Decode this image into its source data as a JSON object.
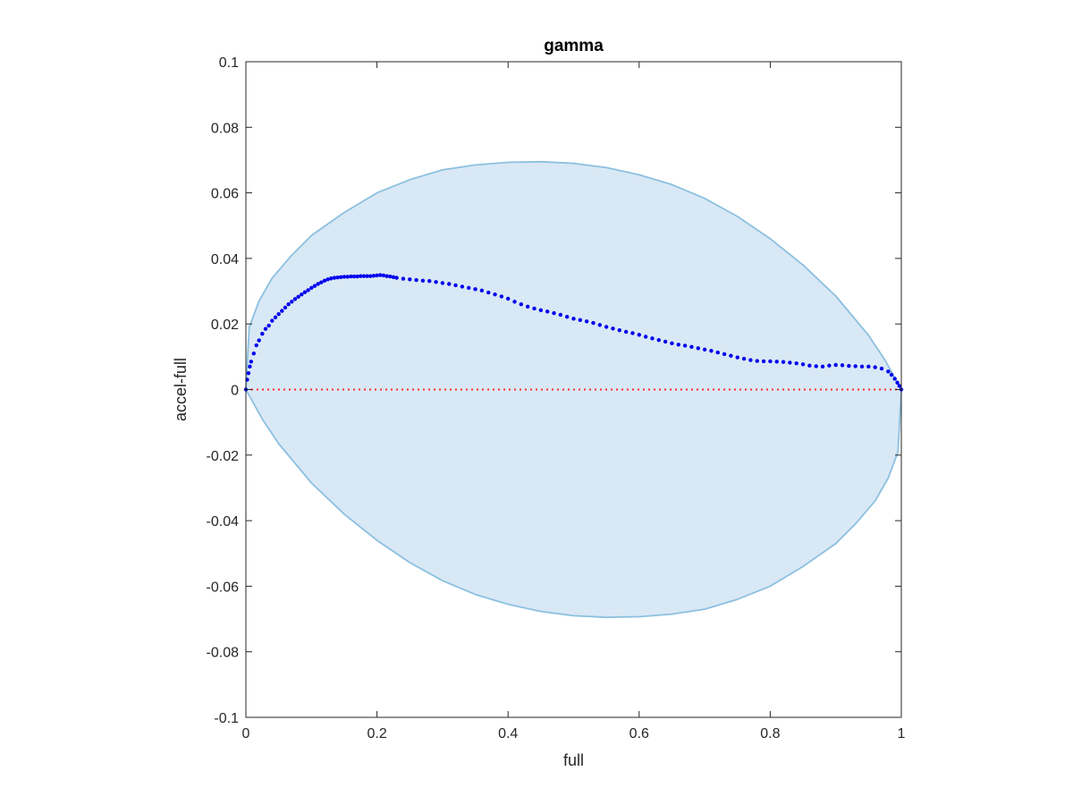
{
  "chart_data": {
    "type": "scatter",
    "title": "gamma",
    "xlabel": "full",
    "ylabel": "accel-full",
    "xlim": [
      0,
      1
    ],
    "ylim": [
      -0.1,
      0.1
    ],
    "xticks": [
      0,
      0.2,
      0.4,
      0.6,
      0.8,
      1
    ],
    "xtick_labels": [
      "0",
      "0.2",
      "0.4",
      "0.6",
      "0.8",
      "1"
    ],
    "yticks": [
      -0.1,
      -0.08,
      -0.06,
      -0.04,
      -0.02,
      0,
      0.02,
      0.04,
      0.06,
      0.08,
      0.1
    ],
    "ytick_labels": [
      "-0.1",
      "-0.08",
      "-0.06",
      "-0.04",
      "-0.02",
      "0",
      "0.02",
      "0.04",
      "0.06",
      "0.08",
      "0.1"
    ],
    "grid": false,
    "colors": {
      "points": "#0000ee",
      "region_fill": "#d9e8f5",
      "region_edge": "#8cc0e0",
      "reference_line": "#ff2a2a",
      "axes": "#262626"
    },
    "reference_line": {
      "y": 0,
      "style": "dotted"
    },
    "region": {
      "shape": "ellipse",
      "upper": [
        [
          0.0,
          0.0
        ],
        [
          0.005,
          0.019
        ],
        [
          0.02,
          0.027
        ],
        [
          0.04,
          0.034
        ],
        [
          0.07,
          0.041
        ],
        [
          0.1,
          0.047
        ],
        [
          0.15,
          0.054
        ],
        [
          0.2,
          0.06
        ],
        [
          0.25,
          0.064
        ],
        [
          0.3,
          0.067
        ],
        [
          0.35,
          0.0685
        ],
        [
          0.4,
          0.0693
        ],
        [
          0.45,
          0.0695
        ],
        [
          0.5,
          0.069
        ],
        [
          0.55,
          0.0677
        ],
        [
          0.6,
          0.0655
        ],
        [
          0.65,
          0.0625
        ],
        [
          0.7,
          0.0583
        ],
        [
          0.75,
          0.0528
        ],
        [
          0.8,
          0.046
        ],
        [
          0.85,
          0.038
        ],
        [
          0.9,
          0.0285
        ],
        [
          0.95,
          0.0165
        ],
        [
          0.975,
          0.009
        ],
        [
          1.0,
          0.0
        ]
      ],
      "lower": [
        [
          0.0,
          0.0
        ],
        [
          0.025,
          -0.009
        ],
        [
          0.05,
          -0.0165
        ],
        [
          0.1,
          -0.0285
        ],
        [
          0.15,
          -0.038
        ],
        [
          0.2,
          -0.046
        ],
        [
          0.25,
          -0.0528
        ],
        [
          0.3,
          -0.0583
        ],
        [
          0.35,
          -0.0625
        ],
        [
          0.4,
          -0.0655
        ],
        [
          0.45,
          -0.0677
        ],
        [
          0.5,
          -0.069
        ],
        [
          0.55,
          -0.0695
        ],
        [
          0.6,
          -0.0693
        ],
        [
          0.65,
          -0.0685
        ],
        [
          0.7,
          -0.067
        ],
        [
          0.75,
          -0.064
        ],
        [
          0.8,
          -0.06
        ],
        [
          0.85,
          -0.054
        ],
        [
          0.9,
          -0.047
        ],
        [
          0.93,
          -0.041
        ],
        [
          0.96,
          -0.034
        ],
        [
          0.98,
          -0.027
        ],
        [
          0.995,
          -0.019
        ],
        [
          1.0,
          0.0
        ]
      ]
    },
    "series": [
      {
        "points": [
          [
            0.0,
            0.0
          ],
          [
            0.002,
            0.003
          ],
          [
            0.004,
            0.005
          ],
          [
            0.006,
            0.007
          ],
          [
            0.008,
            0.0085
          ],
          [
            0.012,
            0.011
          ],
          [
            0.016,
            0.0135
          ],
          [
            0.02,
            0.015
          ],
          [
            0.025,
            0.017
          ],
          [
            0.03,
            0.0185
          ],
          [
            0.035,
            0.0195
          ],
          [
            0.04,
            0.021
          ],
          [
            0.045,
            0.022
          ],
          [
            0.05,
            0.023
          ],
          [
            0.055,
            0.024
          ],
          [
            0.06,
            0.025
          ],
          [
            0.065,
            0.026
          ],
          [
            0.07,
            0.0268
          ],
          [
            0.075,
            0.0276
          ],
          [
            0.08,
            0.0283
          ],
          [
            0.085,
            0.029
          ],
          [
            0.09,
            0.0297
          ],
          [
            0.095,
            0.0303
          ],
          [
            0.1,
            0.031
          ],
          [
            0.105,
            0.0316
          ],
          [
            0.11,
            0.0322
          ],
          [
            0.115,
            0.0327
          ],
          [
            0.12,
            0.0332
          ],
          [
            0.125,
            0.0336
          ],
          [
            0.13,
            0.0339
          ],
          [
            0.135,
            0.0341
          ],
          [
            0.14,
            0.0342
          ],
          [
            0.145,
            0.0343
          ],
          [
            0.15,
            0.0344
          ],
          [
            0.155,
            0.0344
          ],
          [
            0.16,
            0.0345
          ],
          [
            0.165,
            0.0345
          ],
          [
            0.17,
            0.0345
          ],
          [
            0.175,
            0.0346
          ],
          [
            0.18,
            0.0346
          ],
          [
            0.185,
            0.0346
          ],
          [
            0.19,
            0.0346
          ],
          [
            0.195,
            0.0347
          ],
          [
            0.2,
            0.0348
          ],
          [
            0.205,
            0.0349
          ],
          [
            0.21,
            0.0348
          ],
          [
            0.215,
            0.0346
          ],
          [
            0.22,
            0.0345
          ],
          [
            0.225,
            0.0343
          ],
          [
            0.23,
            0.0341
          ],
          [
            0.24,
            0.0338
          ],
          [
            0.25,
            0.0336
          ],
          [
            0.26,
            0.0334
          ],
          [
            0.27,
            0.0332
          ],
          [
            0.28,
            0.0331
          ],
          [
            0.29,
            0.0328
          ],
          [
            0.3,
            0.0325
          ],
          [
            0.31,
            0.0322
          ],
          [
            0.32,
            0.0318
          ],
          [
            0.33,
            0.0314
          ],
          [
            0.34,
            0.031
          ],
          [
            0.35,
            0.0306
          ],
          [
            0.36,
            0.0302
          ],
          [
            0.37,
            0.0296
          ],
          [
            0.38,
            0.029
          ],
          [
            0.39,
            0.0284
          ],
          [
            0.4,
            0.0277
          ],
          [
            0.41,
            0.0268
          ],
          [
            0.42,
            0.026
          ],
          [
            0.43,
            0.0253
          ],
          [
            0.44,
            0.0247
          ],
          [
            0.45,
            0.0242
          ],
          [
            0.46,
            0.0238
          ],
          [
            0.47,
            0.0233
          ],
          [
            0.48,
            0.0228
          ],
          [
            0.49,
            0.0222
          ],
          [
            0.5,
            0.0216
          ],
          [
            0.51,
            0.0212
          ],
          [
            0.52,
            0.0208
          ],
          [
            0.53,
            0.0203
          ],
          [
            0.54,
            0.0197
          ],
          [
            0.55,
            0.0191
          ],
          [
            0.56,
            0.0186
          ],
          [
            0.57,
            0.0181
          ],
          [
            0.58,
            0.0176
          ],
          [
            0.59,
            0.0172
          ],
          [
            0.6,
            0.0167
          ],
          [
            0.61,
            0.0161
          ],
          [
            0.62,
            0.0156
          ],
          [
            0.63,
            0.0151
          ],
          [
            0.64,
            0.0146
          ],
          [
            0.65,
            0.0141
          ],
          [
            0.66,
            0.0137
          ],
          [
            0.67,
            0.0134
          ],
          [
            0.68,
            0.013
          ],
          [
            0.69,
            0.0126
          ],
          [
            0.7,
            0.0122
          ],
          [
            0.71,
            0.0118
          ],
          [
            0.72,
            0.0113
          ],
          [
            0.73,
            0.0108
          ],
          [
            0.74,
            0.0103
          ],
          [
            0.75,
            0.0098
          ],
          [
            0.76,
            0.0094
          ],
          [
            0.77,
            0.009
          ],
          [
            0.78,
            0.0087
          ],
          [
            0.79,
            0.0086
          ],
          [
            0.8,
            0.0086
          ],
          [
            0.81,
            0.0085
          ],
          [
            0.82,
            0.0084
          ],
          [
            0.83,
            0.0082
          ],
          [
            0.84,
            0.008
          ],
          [
            0.85,
            0.0077
          ],
          [
            0.86,
            0.0073
          ],
          [
            0.87,
            0.0071
          ],
          [
            0.88,
            0.007
          ],
          [
            0.89,
            0.0073
          ],
          [
            0.9,
            0.0075
          ],
          [
            0.91,
            0.0074
          ],
          [
            0.92,
            0.0072
          ],
          [
            0.93,
            0.0071
          ],
          [
            0.94,
            0.007
          ],
          [
            0.95,
            0.007
          ],
          [
            0.96,
            0.0068
          ],
          [
            0.97,
            0.0064
          ],
          [
            0.98,
            0.0055
          ],
          [
            0.985,
            0.0045
          ],
          [
            0.99,
            0.0033
          ],
          [
            0.994,
            0.0021
          ],
          [
            0.997,
            0.0011
          ],
          [
            1.0,
            0.0
          ]
        ]
      }
    ]
  }
}
